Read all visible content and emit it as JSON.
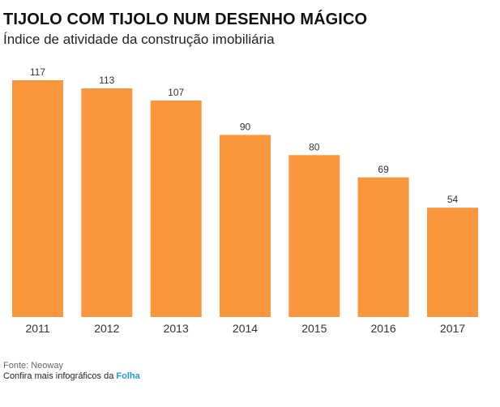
{
  "title": "TIJOLO COM TIJOLO NUM DESENHO MÁGICO",
  "subtitle": "Índice de atividade da construção imobiliária",
  "chart_data": {
    "type": "bar",
    "categories": [
      "2011",
      "2012",
      "2013",
      "2014",
      "2015",
      "2016",
      "2017"
    ],
    "values": [
      117,
      113,
      107,
      90,
      80,
      69,
      54
    ],
    "ylim": [
      0,
      117
    ],
    "grid": false,
    "legend": "none",
    "bar_color": "#fa963e"
  },
  "footer": {
    "source": "Fonte: Neoway",
    "more_prefix": "Confira mais infográficos da",
    "brand": "Folha",
    "brand_color": "#1e9bd7"
  }
}
